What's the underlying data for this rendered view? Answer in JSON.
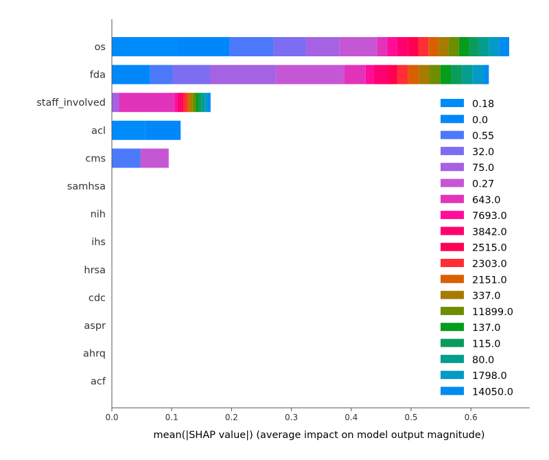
{
  "chart_data": {
    "type": "bar",
    "orientation": "horizontal",
    "stacked": true,
    "title": "",
    "xlabel": "mean(|SHAP value|) (average impact on model output magnitude)",
    "ylabel": "",
    "xlim": [
      0,
      0.7
    ],
    "xticks": [
      "0.0",
      "0.1",
      "0.2",
      "0.3",
      "0.4",
      "0.5",
      "0.6"
    ],
    "grid": false,
    "legend_position": "right",
    "categories": [
      "os",
      "fda",
      "staff_involved",
      "acl",
      "cms",
      "samhsa",
      "nih",
      "ihs",
      "hrsa",
      "cdc",
      "aspr",
      "ahrq",
      "acf"
    ],
    "series": [
      {
        "name": "0.18",
        "color": "#008bfb",
        "values": [
          0.109,
          0.0,
          0.0,
          0.056,
          0.0,
          0,
          0,
          0,
          0,
          0,
          0,
          0,
          0
        ]
      },
      {
        "name": "0.0",
        "color": "#0088fb",
        "values": [
          0.088,
          0.064,
          0.0,
          0.059,
          0.0,
          0,
          0,
          0,
          0,
          0,
          0,
          0,
          0
        ]
      },
      {
        "name": "0.55",
        "color": "#4b79fa",
        "values": [
          0.073,
          0.038,
          0.0,
          0.0,
          0.048,
          0,
          0,
          0,
          0,
          0,
          0,
          0,
          0
        ]
      },
      {
        "name": "32.0",
        "color": "#7d6df1",
        "values": [
          0.055,
          0.062,
          0.0,
          0.0,
          0.0,
          0,
          0,
          0,
          0,
          0,
          0,
          0,
          0
        ]
      },
      {
        "name": "75.0",
        "color": "#a562e2",
        "values": [
          0.055,
          0.111,
          0.012,
          0.0,
          0.0,
          0,
          0,
          0,
          0,
          0,
          0,
          0,
          0
        ]
      },
      {
        "name": "0.27",
        "color": "#c657d4",
        "values": [
          0.063,
          0.113,
          0.0,
          0.0,
          0.047,
          0,
          0,
          0,
          0,
          0,
          0,
          0,
          0
        ]
      },
      {
        "name": "643.0",
        "color": "#e234bb",
        "values": [
          0.017,
          0.036,
          0.093,
          0.0,
          0.0,
          0,
          0,
          0,
          0,
          0,
          0,
          0,
          0
        ]
      },
      {
        "name": "7693.0",
        "color": "#ff0d99",
        "values": [
          0.017,
          0.014,
          0.005,
          0.0,
          0.0,
          0,
          0,
          0,
          0,
          0,
          0,
          0,
          0
        ]
      },
      {
        "name": "3842.0",
        "color": "#ff0071",
        "values": [
          0.018,
          0.023,
          0.006,
          0.0,
          0.0,
          0,
          0,
          0,
          0,
          0,
          0,
          0,
          0
        ]
      },
      {
        "name": "2515.0",
        "color": "#ff0052",
        "values": [
          0.017,
          0.016,
          0.004,
          0.0,
          0.0,
          0,
          0,
          0,
          0,
          0,
          0,
          0,
          0
        ]
      },
      {
        "name": "2303.0",
        "color": "#ff2d36",
        "values": [
          0.017,
          0.018,
          0.005,
          0.0,
          0.0,
          0,
          0,
          0,
          0,
          0,
          0,
          0,
          0
        ]
      },
      {
        "name": "2151.0",
        "color": "#d95f02",
        "values": [
          0.017,
          0.018,
          0.005,
          0.0,
          0.0,
          0,
          0,
          0,
          0,
          0,
          0,
          0,
          0
        ]
      },
      {
        "name": "337.0",
        "color": "#a57b00",
        "values": [
          0.017,
          0.018,
          0.005,
          0.0,
          0.0,
          0,
          0,
          0,
          0,
          0,
          0,
          0,
          0
        ]
      },
      {
        "name": "11899.0",
        "color": "#6e8d00",
        "values": [
          0.017,
          0.018,
          0.005,
          0.0,
          0.0,
          0,
          0,
          0,
          0,
          0,
          0,
          0,
          0
        ]
      },
      {
        "name": "137.0",
        "color": "#069c1c",
        "values": [
          0.017,
          0.018,
          0.005,
          0.0,
          0.0,
          0,
          0,
          0,
          0,
          0,
          0,
          0,
          0
        ]
      },
      {
        "name": "115.0",
        "color": "#0b9c5d",
        "values": [
          0.016,
          0.018,
          0.005,
          0.0,
          0.0,
          0,
          0,
          0,
          0,
          0,
          0,
          0,
          0
        ]
      },
      {
        "name": "80.0",
        "color": "#049d8e",
        "values": [
          0.017,
          0.018,
          0.005,
          0.0,
          0.0,
          0,
          0,
          0,
          0,
          0,
          0,
          0,
          0
        ]
      },
      {
        "name": "1798.0",
        "color": "#039bc6",
        "values": [
          0.017,
          0.018,
          0.005,
          0.0,
          0.0,
          0,
          0,
          0,
          0,
          0,
          0,
          0,
          0
        ]
      },
      {
        "name": "14050.0",
        "color": "#008bf0",
        "values": [
          0.017,
          0.009,
          0.005,
          0.0,
          0.0,
          0,
          0,
          0,
          0,
          0,
          0,
          0,
          0
        ]
      }
    ]
  }
}
